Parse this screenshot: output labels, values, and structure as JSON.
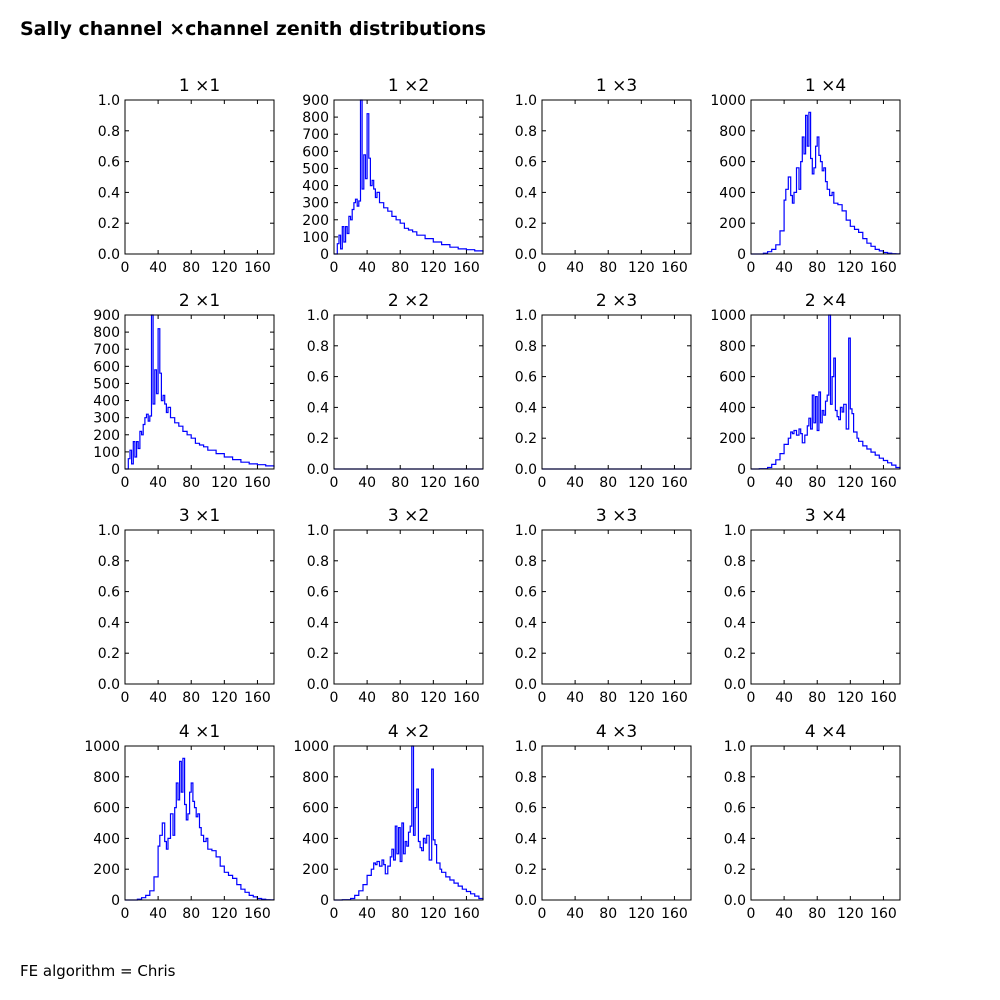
{
  "figure": {
    "title": "Sally channel ×channel zenith distributions",
    "footer": "FE algorithm = Chris"
  },
  "colors": {
    "line": "#0000ff",
    "axes": "#000000",
    "background": "#ffffff"
  },
  "chart_data": [
    {
      "type": "line",
      "title": "1 ×1",
      "xlim": [
        0,
        180
      ],
      "ylim": [
        0,
        1
      ],
      "xticks": [
        0,
        40,
        80,
        120,
        160
      ],
      "yticks": [
        0.0,
        0.2,
        0.4,
        0.6,
        0.8,
        1.0
      ],
      "grid": false,
      "series": []
    },
    {
      "type": "line",
      "title": "1 ×2",
      "xlim": [
        0,
        180
      ],
      "ylim": [
        0,
        900
      ],
      "xticks": [
        0,
        40,
        80,
        120,
        160
      ],
      "yticks": [
        0,
        100,
        200,
        300,
        400,
        500,
        600,
        700,
        800,
        900
      ],
      "grid": false,
      "series": [
        {
          "x": [
            0,
            4,
            6,
            8,
            10,
            12,
            14,
            16,
            18,
            20,
            22,
            24,
            26,
            28,
            30,
            32,
            34,
            36,
            38,
            40,
            42,
            44,
            46,
            48,
            50,
            52,
            55,
            60,
            65,
            70,
            75,
            80,
            85,
            90,
            95,
            100,
            110,
            120,
            130,
            140,
            150,
            160,
            170,
            180
          ],
          "y": [
            0,
            60,
            110,
            30,
            160,
            70,
            160,
            120,
            220,
            200,
            260,
            300,
            320,
            280,
            310,
            900,
            380,
            580,
            440,
            820,
            560,
            400,
            430,
            380,
            330,
            360,
            300,
            270,
            250,
            220,
            200,
            180,
            150,
            140,
            130,
            110,
            90,
            70,
            55,
            40,
            30,
            25,
            18,
            10
          ]
        }
      ]
    },
    {
      "type": "line",
      "title": "1 ×3",
      "xlim": [
        0,
        180
      ],
      "ylim": [
        0,
        1
      ],
      "xticks": [
        0,
        40,
        80,
        120,
        160
      ],
      "yticks": [
        0.0,
        0.2,
        0.4,
        0.6,
        0.8,
        1.0
      ],
      "grid": false,
      "series": []
    },
    {
      "type": "line",
      "title": "1 ×4",
      "xlim": [
        0,
        180
      ],
      "ylim": [
        0,
        1000
      ],
      "xticks": [
        0,
        40,
        80,
        120,
        160
      ],
      "yticks": [
        0,
        200,
        400,
        600,
        800,
        1000
      ],
      "grid": false,
      "series": [
        {
          "x": [
            0,
            15,
            20,
            25,
            30,
            35,
            40,
            42,
            45,
            48,
            50,
            52,
            55,
            58,
            60,
            62,
            64,
            66,
            68,
            70,
            72,
            74,
            76,
            78,
            80,
            82,
            84,
            86,
            88,
            90,
            92,
            95,
            98,
            100,
            105,
            110,
            115,
            120,
            125,
            130,
            135,
            140,
            145,
            150,
            155,
            160,
            165,
            170,
            175,
            180
          ],
          "y": [
            0,
            5,
            15,
            30,
            60,
            150,
            350,
            420,
            500,
            380,
            330,
            400,
            560,
            420,
            600,
            760,
            650,
            900,
            700,
            920,
            620,
            520,
            560,
            700,
            760,
            640,
            600,
            540,
            560,
            470,
            420,
            380,
            400,
            330,
            320,
            280,
            220,
            180,
            160,
            140,
            100,
            70,
            50,
            30,
            20,
            10,
            5,
            2,
            1,
            0
          ]
        }
      ]
    },
    {
      "type": "line",
      "title": "2 ×1",
      "xlim": [
        0,
        180
      ],
      "ylim": [
        0,
        900
      ],
      "xticks": [
        0,
        40,
        80,
        120,
        160
      ],
      "yticks": [
        0,
        100,
        200,
        300,
        400,
        500,
        600,
        700,
        800,
        900
      ],
      "grid": false,
      "series": [
        {
          "x": [
            0,
            4,
            6,
            8,
            10,
            12,
            14,
            16,
            18,
            20,
            22,
            24,
            26,
            28,
            30,
            32,
            34,
            36,
            38,
            40,
            42,
            44,
            46,
            48,
            50,
            52,
            55,
            60,
            65,
            70,
            75,
            80,
            85,
            90,
            95,
            100,
            110,
            120,
            130,
            140,
            150,
            160,
            170,
            180
          ],
          "y": [
            0,
            60,
            110,
            30,
            160,
            70,
            160,
            120,
            220,
            200,
            260,
            300,
            320,
            280,
            310,
            900,
            380,
            580,
            440,
            820,
            560,
            400,
            430,
            380,
            330,
            360,
            300,
            270,
            250,
            220,
            200,
            180,
            150,
            140,
            130,
            110,
            90,
            70,
            55,
            40,
            30,
            25,
            18,
            10
          ]
        }
      ]
    },
    {
      "type": "line",
      "title": "2 ×2",
      "xlim": [
        0,
        180
      ],
      "ylim": [
        0,
        1
      ],
      "xticks": [
        0,
        40,
        80,
        120,
        160
      ],
      "yticks": [
        0.0,
        0.2,
        0.4,
        0.6,
        0.8,
        1.0
      ],
      "grid": false,
      "series": [
        {
          "x": [
            0,
            180
          ],
          "y": [
            0,
            0
          ]
        }
      ]
    },
    {
      "type": "line",
      "title": "2 ×3",
      "xlim": [
        0,
        180
      ],
      "ylim": [
        0,
        1
      ],
      "xticks": [
        0,
        40,
        80,
        120,
        160
      ],
      "yticks": [
        0.0,
        0.2,
        0.4,
        0.6,
        0.8,
        1.0
      ],
      "grid": false,
      "series": [
        {
          "x": [
            0,
            180
          ],
          "y": [
            0,
            0
          ]
        }
      ]
    },
    {
      "type": "line",
      "title": "2 ×4",
      "xlim": [
        0,
        180
      ],
      "ylim": [
        0,
        1000
      ],
      "xticks": [
        0,
        40,
        80,
        120,
        160
      ],
      "yticks": [
        0,
        200,
        400,
        600,
        800,
        1000
      ],
      "grid": false,
      "series": [
        {
          "x": [
            0,
            10,
            20,
            25,
            30,
            35,
            40,
            45,
            48,
            50,
            52,
            55,
            58,
            60,
            62,
            65,
            68,
            70,
            72,
            74,
            76,
            78,
            80,
            82,
            84,
            86,
            88,
            90,
            92,
            94,
            96,
            98,
            100,
            102,
            104,
            106,
            108,
            110,
            112,
            115,
            118,
            120,
            122,
            124,
            126,
            128,
            130,
            135,
            140,
            145,
            150,
            155,
            160,
            165,
            170,
            175,
            180
          ],
          "y": [
            0,
            2,
            10,
            30,
            60,
            100,
            160,
            200,
            240,
            230,
            250,
            220,
            260,
            230,
            170,
            220,
            280,
            330,
            260,
            480,
            300,
            470,
            250,
            500,
            300,
            380,
            350,
            440,
            480,
            1000,
            420,
            600,
            720,
            380,
            340,
            320,
            400,
            370,
            420,
            260,
            850,
            390,
            360,
            240,
            240,
            200,
            180,
            150,
            130,
            110,
            90,
            70,
            55,
            40,
            25,
            10,
            0
          ]
        }
      ]
    },
    {
      "type": "line",
      "title": "3 ×1",
      "xlim": [
        0,
        180
      ],
      "ylim": [
        0,
        1
      ],
      "xticks": [
        0,
        40,
        80,
        120,
        160
      ],
      "yticks": [
        0.0,
        0.2,
        0.4,
        0.6,
        0.8,
        1.0
      ],
      "grid": false,
      "series": []
    },
    {
      "type": "line",
      "title": "3 ×2",
      "xlim": [
        0,
        180
      ],
      "ylim": [
        0,
        1
      ],
      "xticks": [
        0,
        40,
        80,
        120,
        160
      ],
      "yticks": [
        0.0,
        0.2,
        0.4,
        0.6,
        0.8,
        1.0
      ],
      "grid": false,
      "series": []
    },
    {
      "type": "line",
      "title": "3 ×3",
      "xlim": [
        0,
        180
      ],
      "ylim": [
        0,
        1
      ],
      "xticks": [
        0,
        40,
        80,
        120,
        160
      ],
      "yticks": [
        0.0,
        0.2,
        0.4,
        0.6,
        0.8,
        1.0
      ],
      "grid": false,
      "series": []
    },
    {
      "type": "line",
      "title": "3 ×4",
      "xlim": [
        0,
        180
      ],
      "ylim": [
        0,
        1
      ],
      "xticks": [
        0,
        40,
        80,
        120,
        160
      ],
      "yticks": [
        0.0,
        0.2,
        0.4,
        0.6,
        0.8,
        1.0
      ],
      "grid": false,
      "series": []
    },
    {
      "type": "line",
      "title": "4 ×1",
      "xlim": [
        0,
        180
      ],
      "ylim": [
        0,
        1000
      ],
      "xticks": [
        0,
        40,
        80,
        120,
        160
      ],
      "yticks": [
        0,
        200,
        400,
        600,
        800,
        1000
      ],
      "grid": false,
      "series": [
        {
          "x": [
            0,
            15,
            20,
            25,
            30,
            35,
            40,
            42,
            45,
            48,
            50,
            52,
            55,
            58,
            60,
            62,
            64,
            66,
            68,
            70,
            72,
            74,
            76,
            78,
            80,
            82,
            84,
            86,
            88,
            90,
            92,
            95,
            98,
            100,
            105,
            110,
            115,
            120,
            125,
            130,
            135,
            140,
            145,
            150,
            155,
            160,
            165,
            170,
            175,
            180
          ],
          "y": [
            0,
            5,
            15,
            30,
            60,
            150,
            350,
            420,
            500,
            380,
            330,
            400,
            560,
            420,
            600,
            760,
            650,
            900,
            700,
            920,
            620,
            520,
            560,
            700,
            760,
            640,
            600,
            540,
            560,
            470,
            420,
            380,
            400,
            330,
            320,
            280,
            220,
            180,
            160,
            140,
            100,
            70,
            50,
            30,
            20,
            10,
            5,
            2,
            1,
            0
          ]
        }
      ]
    },
    {
      "type": "line",
      "title": "4 ×2",
      "xlim": [
        0,
        180
      ],
      "ylim": [
        0,
        1000
      ],
      "xticks": [
        0,
        40,
        80,
        120,
        160
      ],
      "yticks": [
        0,
        200,
        400,
        600,
        800,
        1000
      ],
      "grid": false,
      "series": [
        {
          "x": [
            0,
            10,
            20,
            25,
            30,
            35,
            40,
            45,
            48,
            50,
            52,
            55,
            58,
            60,
            62,
            65,
            68,
            70,
            72,
            74,
            76,
            78,
            80,
            82,
            84,
            86,
            88,
            90,
            92,
            94,
            96,
            98,
            100,
            102,
            104,
            106,
            108,
            110,
            112,
            115,
            118,
            120,
            122,
            124,
            126,
            128,
            130,
            135,
            140,
            145,
            150,
            155,
            160,
            165,
            170,
            175,
            180
          ],
          "y": [
            0,
            2,
            10,
            30,
            60,
            100,
            160,
            200,
            240,
            230,
            250,
            220,
            260,
            230,
            170,
            220,
            280,
            330,
            260,
            480,
            300,
            470,
            250,
            500,
            300,
            380,
            350,
            440,
            480,
            1000,
            420,
            600,
            720,
            380,
            340,
            320,
            400,
            370,
            420,
            260,
            850,
            390,
            360,
            240,
            240,
            200,
            180,
            150,
            130,
            110,
            90,
            70,
            55,
            40,
            25,
            10,
            0
          ]
        }
      ]
    },
    {
      "type": "line",
      "title": "4 ×3",
      "xlim": [
        0,
        180
      ],
      "ylim": [
        0,
        1
      ],
      "xticks": [
        0,
        40,
        80,
        120,
        160
      ],
      "yticks": [
        0.0,
        0.2,
        0.4,
        0.6,
        0.8,
        1.0
      ],
      "grid": false,
      "series": []
    },
    {
      "type": "line",
      "title": "4 ×4",
      "xlim": [
        0,
        180
      ],
      "ylim": [
        0,
        1
      ],
      "xticks": [
        0,
        40,
        80,
        120,
        160
      ],
      "yticks": [
        0.0,
        0.2,
        0.4,
        0.6,
        0.8,
        1.0
      ],
      "grid": false,
      "series": []
    }
  ]
}
